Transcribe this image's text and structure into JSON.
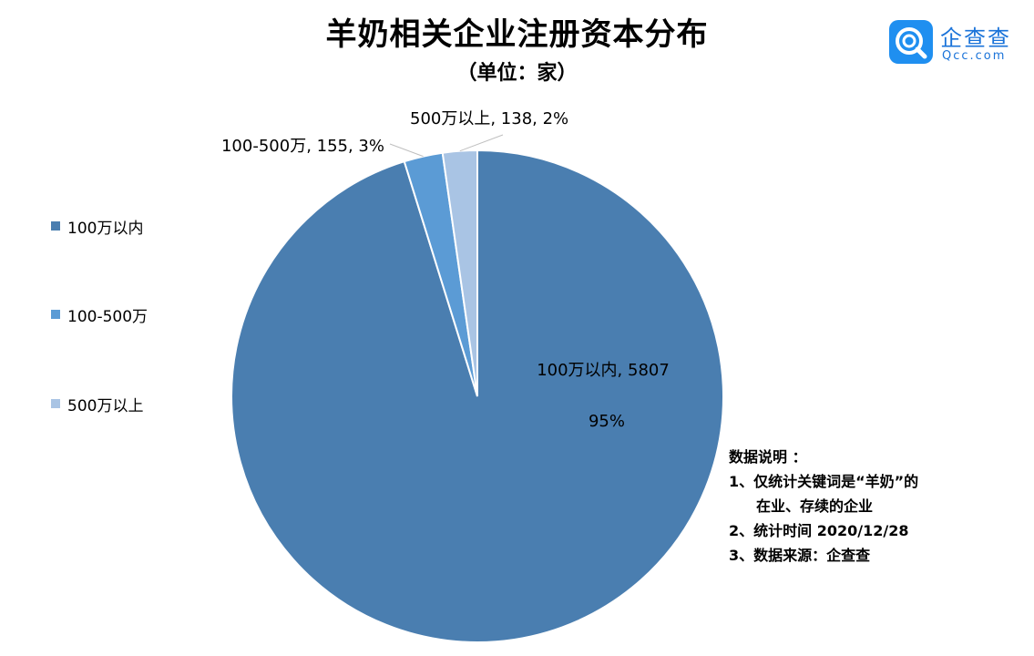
{
  "header": {
    "title": "羊奶相关企业注册资本分布",
    "subtitle": "（单位：家）"
  },
  "logo": {
    "name": "企查查",
    "sub": "Qcc.com",
    "icon": "qcc-logo-icon",
    "color": "#1f8ff0"
  },
  "chart_data": {
    "type": "pie",
    "categories": [
      "100万以内",
      "100-500万",
      "500万以上"
    ],
    "values": [
      5807,
      155,
      138
    ],
    "percents": [
      "95%",
      "3%",
      "2%"
    ],
    "colors": [
      "#4a7eb0",
      "#5b9bd5",
      "#a9c4e4"
    ],
    "data_labels": [
      "100万以内, 5807",
      "100-500万, 155, 3%",
      "500万以上, 138, 2%"
    ],
    "main_percent_label": "95%",
    "legend_position": "left"
  },
  "notes": {
    "heading": "数据说明 ：",
    "lines": [
      "1、仅统计关键词是“羊奶”的",
      "在业、存续的企业",
      "2、统计时间 2020/12/28",
      "3、数据来源：企查查"
    ]
  }
}
